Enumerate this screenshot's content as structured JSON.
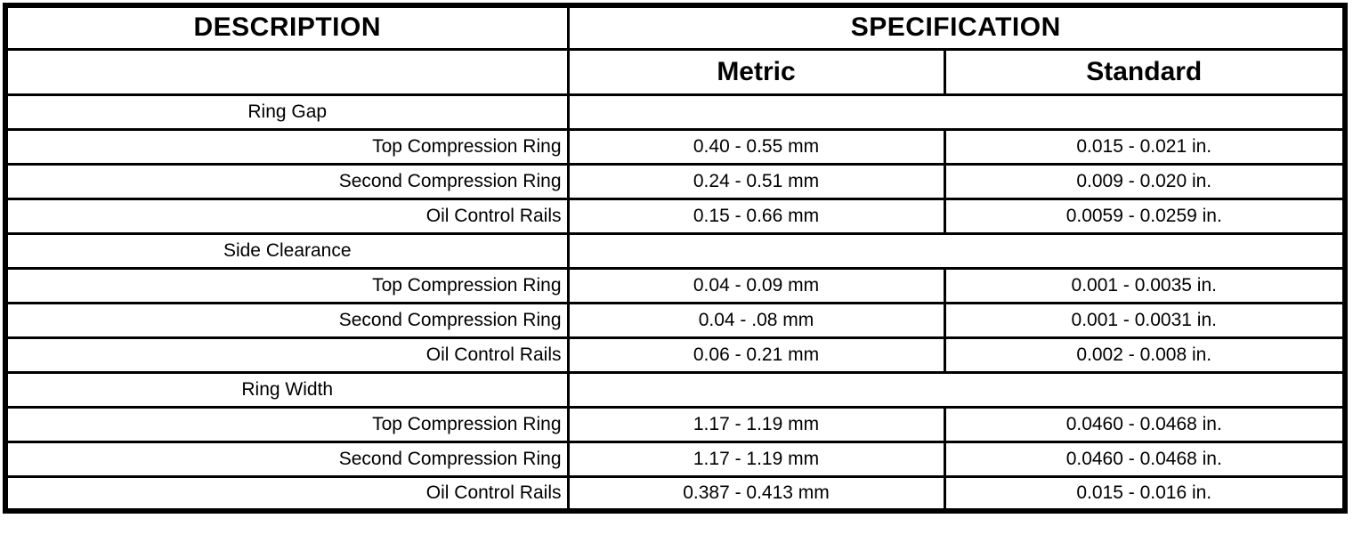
{
  "table": {
    "header": {
      "description": "DESCRIPTION",
      "specification": "SPECIFICATION",
      "metric": "Metric",
      "standard": "Standard"
    },
    "rows": [
      {
        "type": "section",
        "description": "Ring Gap",
        "metric": "",
        "standard": ""
      },
      {
        "type": "data",
        "description": "Top Compression Ring",
        "metric": "0.40 - 0.55 mm",
        "standard": "0.015 - 0.021 in."
      },
      {
        "type": "data",
        "description": "Second Compression Ring",
        "metric": "0.24 - 0.51 mm",
        "standard": "0.009 - 0.020 in."
      },
      {
        "type": "data",
        "description": "Oil Control Rails",
        "metric": "0.15 - 0.66 mm",
        "standard": "0.0059 - 0.0259 in."
      },
      {
        "type": "section",
        "description": "Side Clearance",
        "metric": "",
        "standard": ""
      },
      {
        "type": "data",
        "description": "Top Compression Ring",
        "metric": "0.04 - 0.09 mm",
        "standard": "0.001 - 0.0035 in."
      },
      {
        "type": "data",
        "description": "Second Compression Ring",
        "metric": "0.04 - .08 mm",
        "standard": "0.001 - 0.0031 in."
      },
      {
        "type": "data",
        "description": "Oil Control Rails",
        "metric": "0.06 - 0.21 mm",
        "standard": "0.002 - 0.008 in."
      },
      {
        "type": "section",
        "description": "Ring Width",
        "metric": "",
        "standard": ""
      },
      {
        "type": "data",
        "description": "Top Compression Ring",
        "metric": "1.17 - 1.19 mm",
        "standard": "0.0460 - 0.0468 in."
      },
      {
        "type": "data",
        "description": "Second Compression Ring",
        "metric": "1.17 - 1.19 mm",
        "standard": "0.0460 - 0.0468 in."
      },
      {
        "type": "data",
        "description": "Oil Control Rails",
        "metric": "0.387 - 0.413 mm",
        "standard": "0.015 - 0.016 in."
      }
    ],
    "colors": {
      "border": "#000000",
      "text": "#000000",
      "background": "#ffffff"
    }
  }
}
